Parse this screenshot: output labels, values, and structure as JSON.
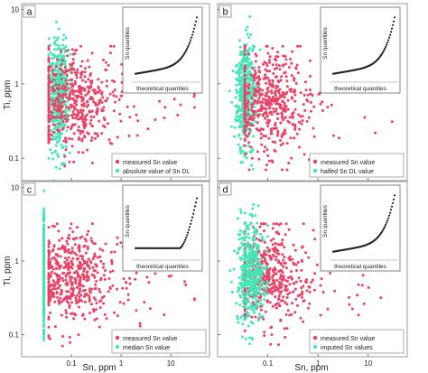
{
  "figure": {
    "y_axis_label": "Ti, ppm",
    "x_axis_label": "Sn, ppm"
  },
  "colors": {
    "measured": "#ee3f64",
    "substituted": "#43e6b6",
    "qq_line": "#222222",
    "frame": "#9a9a9a"
  },
  "chart_data": [
    {
      "type": "scatter",
      "panel": "a",
      "xscale": "log",
      "yscale": "log",
      "xlim": [
        0.01,
        60
      ],
      "ylim": [
        0.05,
        12
      ],
      "xticks": [
        "0.1",
        "1",
        "10"
      ],
      "yticks": [
        "0.1",
        "1",
        "10"
      ],
      "show_x_tick_labels": false,
      "show_y_axis_label": true,
      "legend_position": "bottom-right",
      "series": [
        {
          "name": "measured Sn value",
          "color": "#ee3f64",
          "x_log_center": -1.05,
          "x_log_spread": 0.42,
          "x_min": 0.035,
          "x_max": 30,
          "y_log_center": -0.22,
          "y_log_spread": 0.32,
          "y_min": 0.07,
          "y_max": 3.2
        },
        {
          "name": "absolute value of Sn DL",
          "color": "#43e6b6",
          "x_log_center": -1.25,
          "x_log_spread": 0.1,
          "x_min": 0.035,
          "x_max": 0.1,
          "y_log_center": -0.15,
          "y_log_spread": 0.38,
          "y_min": 0.05,
          "y_max": 8
        }
      ],
      "inset": {
        "type": "qq",
        "ylabel": "Sn quantiles",
        "xlabel": "theoretical quantiles",
        "shape": "convex"
      }
    },
    {
      "type": "scatter",
      "panel": "b",
      "xscale": "log",
      "yscale": "log",
      "xlim": [
        0.01,
        60
      ],
      "ylim": [
        0.05,
        12
      ],
      "xticks": [
        "0.1",
        "1",
        "10"
      ],
      "yticks": [
        "0.1",
        "1",
        "10"
      ],
      "show_x_tick_labels": false,
      "show_y_axis_label": false,
      "legend_position": "bottom-right",
      "series": [
        {
          "name": "measured Sn value",
          "color": "#ee3f64",
          "x_log_center": -1.05,
          "x_log_spread": 0.42,
          "x_min": 0.035,
          "x_max": 30,
          "y_log_center": -0.22,
          "y_log_spread": 0.32,
          "y_min": 0.07,
          "y_max": 3.2
        },
        {
          "name": "halfed Sn DL value",
          "color": "#43e6b6",
          "x_log_center": -1.45,
          "x_log_spread": 0.1,
          "x_min": 0.015,
          "x_max": 0.07,
          "y_log_center": -0.15,
          "y_log_spread": 0.36,
          "y_min": 0.05,
          "y_max": 8
        }
      ],
      "inset": {
        "type": "qq",
        "ylabel": "Sn quantiles",
        "xlabel": "theoretical quantiles",
        "shape": "convex"
      }
    },
    {
      "type": "scatter",
      "panel": "c",
      "xscale": "log",
      "yscale": "log",
      "xlim": [
        0.01,
        60
      ],
      "ylim": [
        0.05,
        12
      ],
      "xticks": [
        "0.1",
        "1",
        "10"
      ],
      "yticks": [
        "0.1",
        "1",
        "10"
      ],
      "show_x_tick_labels": true,
      "show_y_axis_label": true,
      "legend_position": "bottom-right",
      "series": [
        {
          "name": "measured Sn value",
          "color": "#ee3f64",
          "x_log_center": -1.05,
          "x_log_spread": 0.42,
          "x_min": 0.035,
          "x_max": 30,
          "y_log_center": -0.22,
          "y_log_spread": 0.32,
          "y_min": 0.07,
          "y_max": 3.2
        },
        {
          "name": "median Sn value",
          "color": "#43e6b6",
          "x_constant": 0.028,
          "y_log_center": -0.15,
          "y_log_spread": 0.38,
          "y_min": 0.07,
          "y_max": 9
        }
      ],
      "inset": {
        "type": "qq",
        "ylabel": "Sn quantiles",
        "xlabel": "theoretical quantiles",
        "shape": "plateau"
      }
    },
    {
      "type": "scatter",
      "panel": "d",
      "xscale": "log",
      "yscale": "log",
      "xlim": [
        0.01,
        60
      ],
      "ylim": [
        0.05,
        12
      ],
      "xticks": [
        "0.1",
        "1",
        "10"
      ],
      "yticks": [
        "0.1",
        "1",
        "10"
      ],
      "show_x_tick_labels": true,
      "show_y_axis_label": false,
      "legend_position": "bottom-right",
      "series": [
        {
          "name": "measured Sn value",
          "color": "#ee3f64",
          "x_log_center": -1.05,
          "x_log_spread": 0.42,
          "x_min": 0.035,
          "x_max": 30,
          "y_log_center": -0.22,
          "y_log_spread": 0.32,
          "y_min": 0.07,
          "y_max": 3.2
        },
        {
          "name": "imputed Sn values",
          "color": "#43e6b6",
          "x_log_center": -1.35,
          "x_log_spread": 0.14,
          "x_min": 0.015,
          "x_max": 0.1,
          "y_log_center": -0.15,
          "y_log_spread": 0.36,
          "y_min": 0.05,
          "y_max": 8
        }
      ],
      "inset": {
        "type": "qq",
        "ylabel": "Sn quantiles",
        "xlabel": "theoretical quantiles",
        "shape": "convex"
      }
    }
  ]
}
